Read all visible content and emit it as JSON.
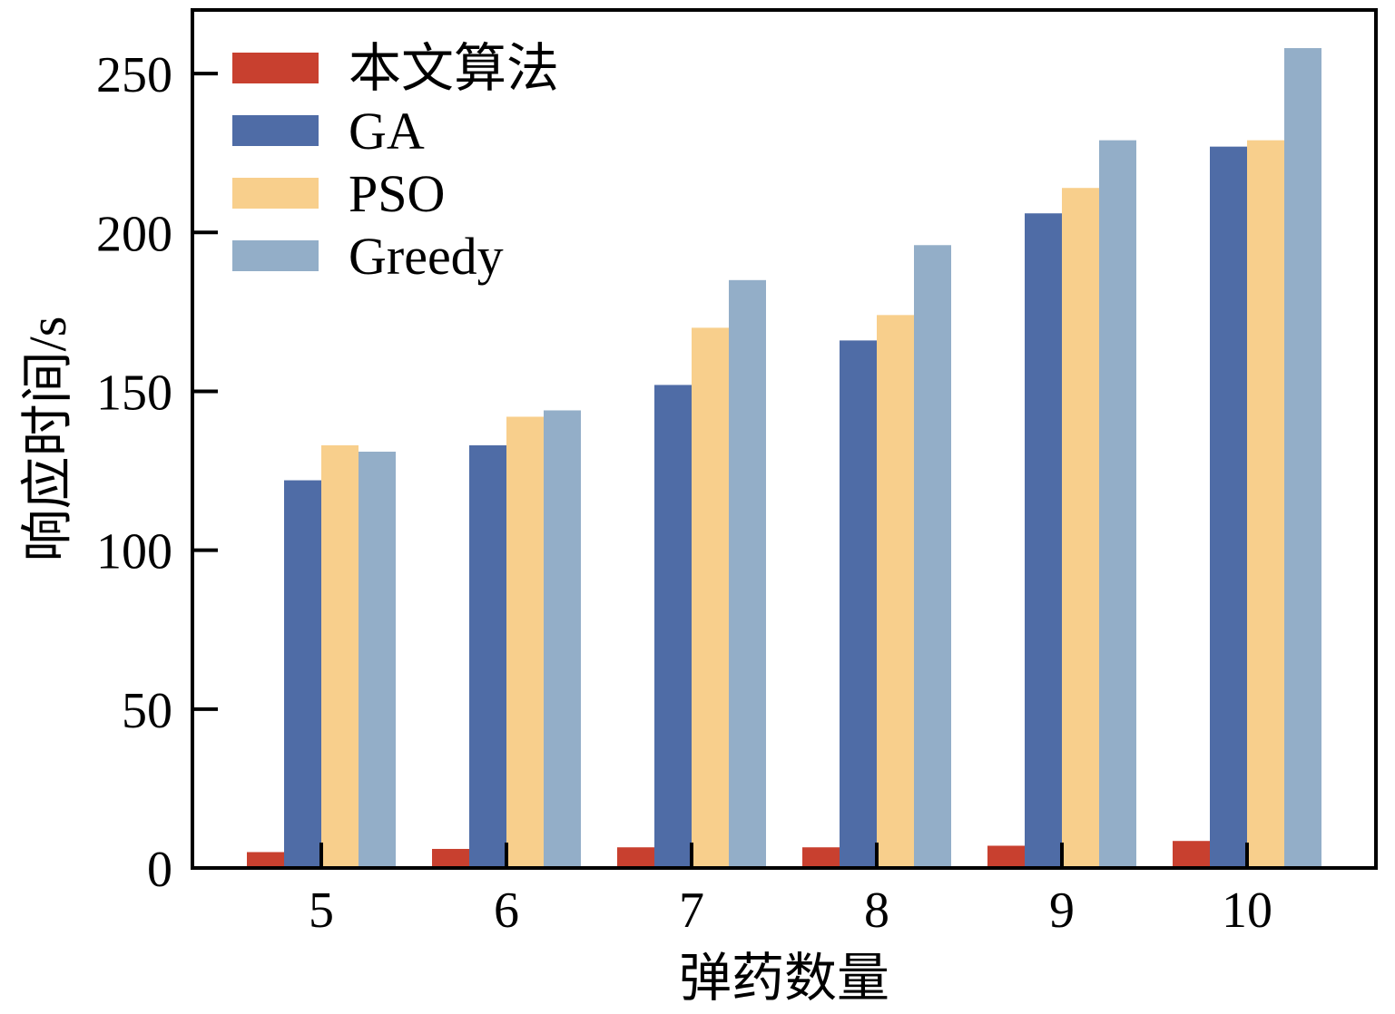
{
  "chart_data": {
    "type": "bar",
    "title": "",
    "xlabel": "弹药数量",
    "ylabel": "响应时间/s",
    "categories": [
      "5",
      "6",
      "7",
      "8",
      "9",
      "10"
    ],
    "series": [
      {
        "name": "本文算法",
        "color": "#c8402f",
        "values": [
          5,
          6,
          6.5,
          6.5,
          7,
          8.5
        ]
      },
      {
        "name": "GA",
        "color": "#4f6ca6",
        "values": [
          122,
          133,
          152,
          166,
          206,
          227
        ]
      },
      {
        "name": "PSO",
        "color": "#f8cf8c",
        "values": [
          133,
          142,
          170,
          174,
          214,
          229
        ]
      },
      {
        "name": "Greedy",
        "color": "#93aec8",
        "values": [
          131,
          144,
          185,
          196,
          229,
          258
        ]
      }
    ],
    "ylim": [
      0,
      270
    ],
    "yticks": [
      0,
      50,
      100,
      150,
      200,
      250
    ],
    "grid": false,
    "legend": "top-left"
  }
}
